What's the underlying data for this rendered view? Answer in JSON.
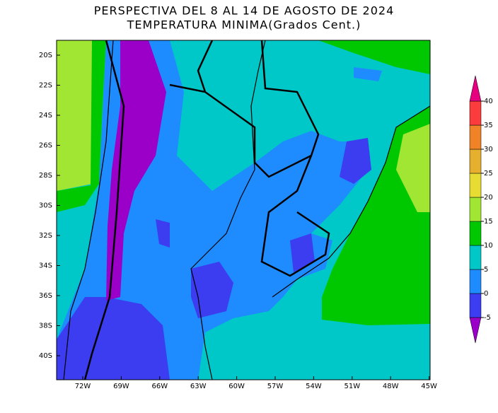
{
  "header": {
    "title": "PERSPECTIVA DEL 8 AL 14 DE AGOSTO DE 2024",
    "subtitle": "TEMPERATURA MINIMA(Grados Cent.)"
  },
  "map": {
    "lat_ticks": [
      "20S",
      "22S",
      "24S",
      "26S",
      "28S",
      "30S",
      "32S",
      "34S",
      "36S",
      "38S",
      "40S"
    ],
    "lon_ticks": [
      "72W",
      "69W",
      "66W",
      "63W",
      "60W",
      "57W",
      "54W",
      "51W",
      "48W",
      "45W"
    ]
  },
  "colorbar": {
    "levels": [
      -5,
      0,
      5,
      10,
      15,
      20,
      25,
      30,
      35,
      40
    ],
    "colors": [
      "#9a00c8",
      "#3c3cf0",
      "#1e8cff",
      "#00c8c8",
      "#00c800",
      "#a0e632",
      "#e6dc32",
      "#e6af2d",
      "#f08228",
      "#fa3c3c",
      "#e6007f"
    ]
  }
}
